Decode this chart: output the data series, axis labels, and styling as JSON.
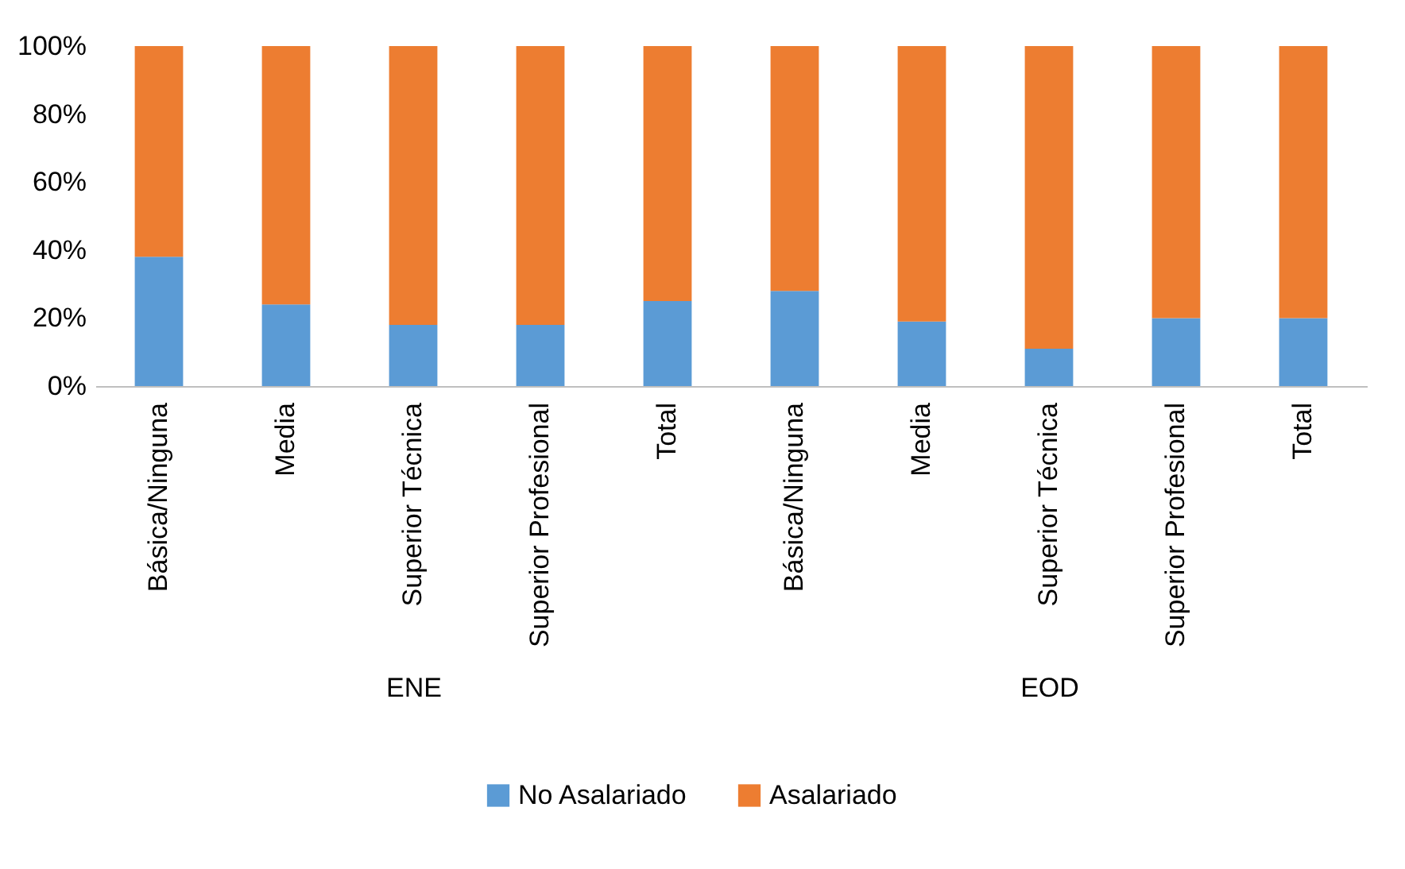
{
  "chart_data": [
    {
      "type": "bar",
      "xlabel": "ENE",
      "categories": [
        "Básica/Ninguna",
        "Media",
        "Superior Técnica",
        "Superior Profesional",
        "Total"
      ],
      "stacked": true,
      "legend": "bottom",
      "ylim": [
        0,
        100
      ],
      "yticks": [
        {
          "value": 0,
          "label": "0%"
        },
        {
          "value": 20,
          "label": "20%"
        },
        {
          "value": 40,
          "label": "40%"
        },
        {
          "value": 60,
          "label": "60%"
        },
        {
          "value": 80,
          "label": "80%"
        },
        {
          "value": 100,
          "label": "100%"
        }
      ],
      "series": [
        {
          "name": "No Asalariado",
          "color": "#5b9bd5",
          "values": [
            38,
            24,
            18,
            18,
            25
          ]
        },
        {
          "name": "Asalariado",
          "color": "#ed7d31",
          "values": [
            62,
            76,
            82,
            82,
            75
          ]
        }
      ]
    },
    {
      "type": "bar",
      "xlabel": "EOD",
      "categories": [
        "Básica/Ninguna",
        "Media",
        "Superior Técnica",
        "Superior Profesional",
        "Total"
      ],
      "stacked": true,
      "tick_labels": "x",
      "ylim": [
        0,
        100
      ],
      "yticks": [
        {
          "value": 0,
          "label": null
        },
        {
          "value": 20,
          "label": null
        },
        {
          "value": 40,
          "label": null
        },
        {
          "value": 60,
          "label": null
        },
        {
          "value": 80,
          "label": null
        },
        {
          "value": 100,
          "label": null
        }
      ],
      "series": [
        {
          "name": "No Asalariado",
          "color": "#5b9bd5",
          "values": [
            28,
            19,
            11,
            20,
            20
          ]
        },
        {
          "name": "Asalariado",
          "color": "#ed7d31",
          "values": [
            72,
            81,
            89,
            80,
            80
          ]
        }
      ]
    }
  ]
}
